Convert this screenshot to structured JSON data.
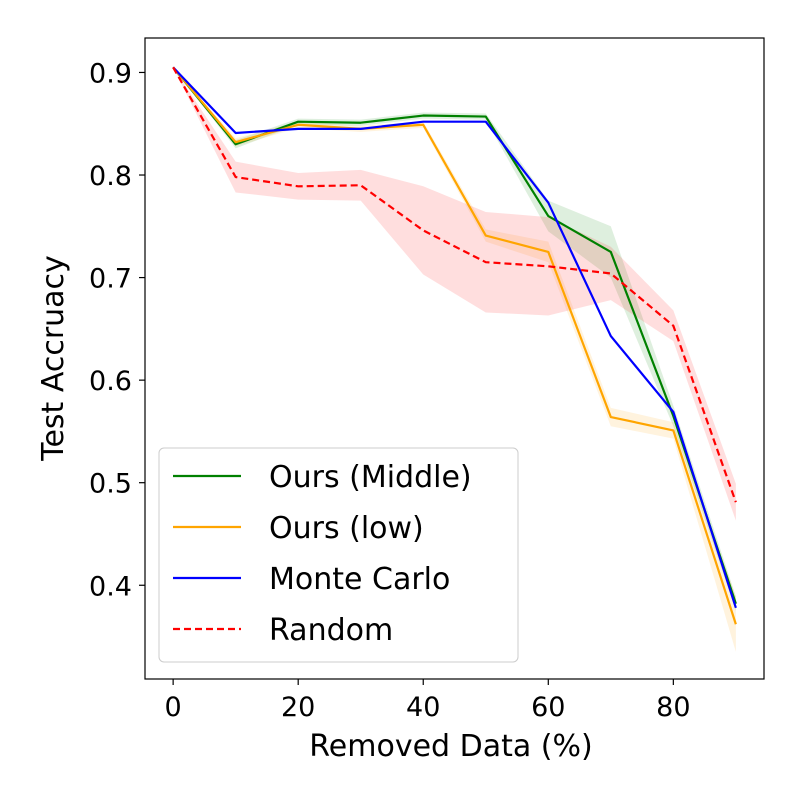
{
  "chart_data": {
    "type": "line",
    "xlabel": "Removed Data (%)",
    "ylabel": "Test Accruacy",
    "xlim": [
      -4.5,
      94.5
    ],
    "ylim": [
      0.3086,
      0.9336
    ],
    "xticks": [
      0,
      20,
      40,
      60,
      80
    ],
    "yticks": [
      0.4,
      0.5,
      0.6,
      0.7,
      0.8,
      0.9
    ],
    "x": [
      0,
      10,
      20,
      30,
      40,
      50,
      60,
      70,
      80,
      90
    ],
    "legend_position": "lower-left",
    "series": [
      {
        "name": "Ours (Middle)",
        "color": "#008000",
        "dash": "solid",
        "values": [
          0.905,
          0.83,
          0.852,
          0.851,
          0.858,
          0.857,
          0.76,
          0.725,
          0.565,
          0.382
        ],
        "band_lower": [
          0.905,
          0.826,
          0.849,
          0.848,
          0.855,
          0.854,
          0.745,
          0.7,
          0.555,
          0.375
        ],
        "band_upper": [
          0.905,
          0.834,
          0.855,
          0.854,
          0.861,
          0.86,
          0.775,
          0.75,
          0.575,
          0.389
        ]
      },
      {
        "name": "Ours (low)",
        "color": "#ffa500",
        "dash": "solid",
        "values": [
          0.905,
          0.832,
          0.849,
          0.845,
          0.849,
          0.741,
          0.725,
          0.564,
          0.551,
          0.362
        ],
        "band_lower": [
          0.905,
          0.828,
          0.846,
          0.842,
          0.846,
          0.735,
          0.715,
          0.555,
          0.543,
          0.335
        ],
        "band_upper": [
          0.905,
          0.836,
          0.852,
          0.848,
          0.852,
          0.747,
          0.735,
          0.573,
          0.559,
          0.389
        ]
      },
      {
        "name": "Monte Carlo",
        "color": "#0000ff",
        "dash": "solid",
        "values": [
          0.905,
          0.841,
          0.845,
          0.845,
          0.852,
          0.852,
          0.773,
          0.643,
          0.569,
          0.378
        ]
      },
      {
        "name": "Random",
        "color": "#ff0000",
        "dash": "dashed",
        "values": [
          0.905,
          0.798,
          0.789,
          0.79,
          0.746,
          0.715,
          0.711,
          0.704,
          0.653,
          0.481
        ],
        "band_lower": [
          0.905,
          0.783,
          0.776,
          0.775,
          0.703,
          0.666,
          0.663,
          0.678,
          0.638,
          0.463
        ],
        "band_upper": [
          0.905,
          0.813,
          0.802,
          0.805,
          0.789,
          0.764,
          0.759,
          0.73,
          0.668,
          0.499
        ]
      }
    ]
  }
}
